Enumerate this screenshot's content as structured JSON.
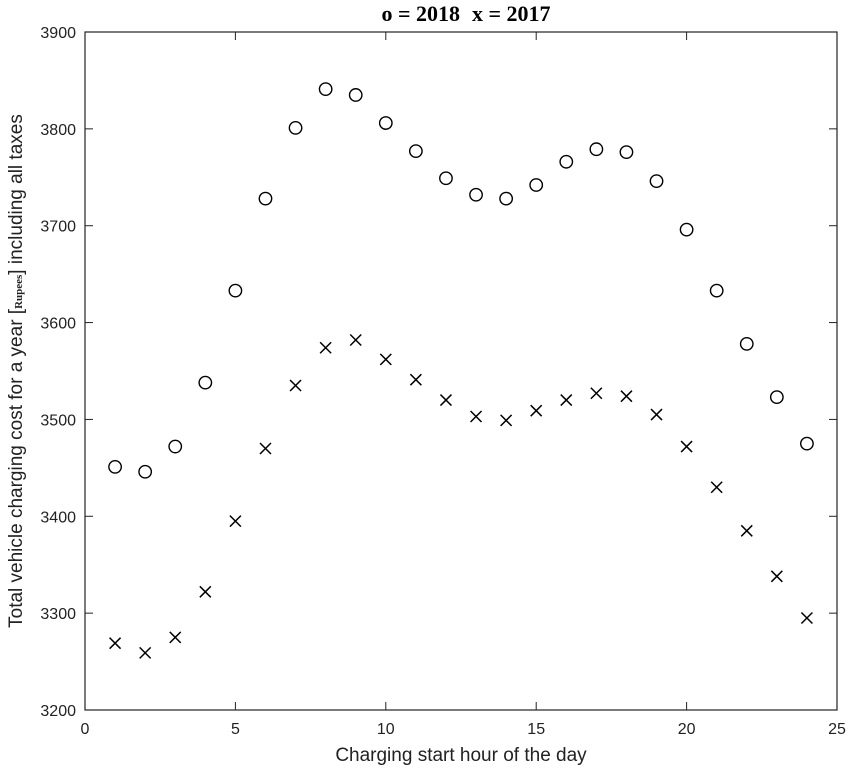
{
  "chart_data": {
    "type": "scatter",
    "title": "o = 2018   x = 2017",
    "title_parts": {
      "marker_2018": "o",
      "eq_2018": " = 2018",
      "marker_2017": "x",
      "eq_2017": " = 2017"
    },
    "xlabel": "Charging start hour of the day",
    "ylabel": "Total vehicle charging cost for a year [Rupees] including all taxes",
    "ylabel_parts": {
      "before": "Total vehicle charging cost for a year ",
      "unit_open": "[",
      "unit": "Rupees",
      "unit_close": "]",
      "after": " including all taxes"
    },
    "xlim": [
      0,
      25
    ],
    "ylim": [
      3200,
      3900
    ],
    "xticks": [
      0,
      5,
      10,
      15,
      20,
      25
    ],
    "yticks": [
      3200,
      3300,
      3400,
      3500,
      3600,
      3700,
      3800,
      3900
    ],
    "grid": false,
    "x": [
      1,
      2,
      3,
      4,
      5,
      6,
      7,
      8,
      9,
      10,
      11,
      12,
      13,
      14,
      15,
      16,
      17,
      18,
      19,
      20,
      21,
      22,
      23,
      24
    ],
    "series": [
      {
        "name": "2018",
        "marker": "circle",
        "values": [
          3451,
          3446,
          3472,
          3538,
          3633,
          3728,
          3801,
          3841,
          3835,
          3806,
          3777,
          3749,
          3732,
          3728,
          3742,
          3766,
          3779,
          3776,
          3746,
          3696,
          3633,
          3578,
          3523,
          3475
        ]
      },
      {
        "name": "2017",
        "marker": "x",
        "values": [
          3269,
          3259,
          3275,
          3322,
          3395,
          3470,
          3535,
          3574,
          3582,
          3562,
          3541,
          3520,
          3503,
          3499,
          3509,
          3520,
          3527,
          3524,
          3505,
          3472,
          3430,
          3385,
          3338,
          3295
        ]
      }
    ],
    "colors": {
      "markers": "#000000",
      "axes": "#222222",
      "background": "#ffffff"
    }
  }
}
